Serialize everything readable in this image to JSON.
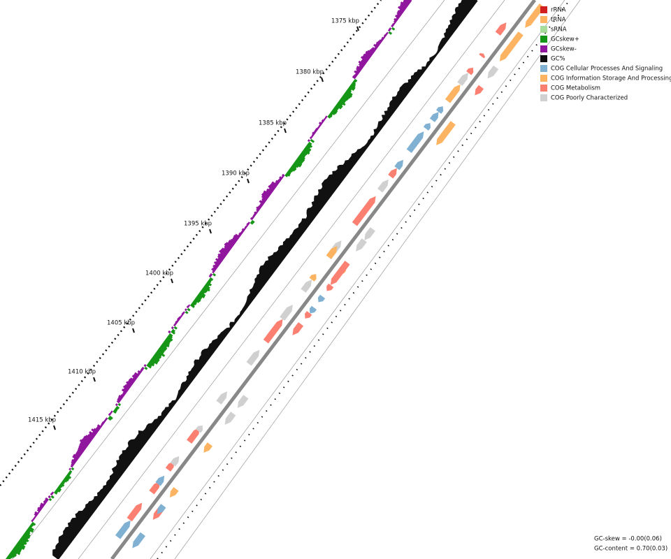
{
  "tick_labels": [
    "1375 kbp",
    "1380 kbp",
    "1385 kbp",
    "1390 kbp",
    "1395 kbp",
    "1400 kbp",
    "1405 kbp",
    "1410 kbp",
    "1415 kbp"
  ],
  "legend": [
    {
      "label": "rRNA",
      "color": "#d21f1f"
    },
    {
      "label": "tRNA",
      "color": "#fdb462"
    },
    {
      "label": "sRNA",
      "color": "#a8dc9c"
    },
    {
      "label": "GCskew+",
      "color": "#169616"
    },
    {
      "label": "GCskew-",
      "color": "#91169e"
    },
    {
      "label": "GC%",
      "color": "#111111"
    },
    {
      "label": "COG Cellular Processes And Signaling",
      "color": "#80b1d3"
    },
    {
      "label": "COG Information Storage And Processing",
      "color": "#fdb462"
    },
    {
      "label": "COG Metabolism",
      "color": "#fb8072"
    },
    {
      "label": "COG Poorly Characterized",
      "color": "#d0d0d0"
    }
  ],
  "footer": [
    "GC-skew = -0.00(0.06)",
    "GC-content = 0.70(0.03)"
  ]
}
